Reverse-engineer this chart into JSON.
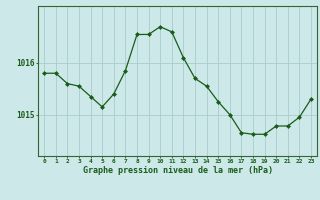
{
  "hours": [
    0,
    1,
    2,
    3,
    4,
    5,
    6,
    7,
    8,
    9,
    10,
    11,
    12,
    13,
    14,
    15,
    16,
    17,
    18,
    19,
    20,
    21,
    22,
    23
  ],
  "pressure": [
    1015.8,
    1015.8,
    1015.6,
    1015.55,
    1015.35,
    1015.15,
    1015.4,
    1015.85,
    1016.55,
    1016.55,
    1016.7,
    1016.6,
    1016.1,
    1015.7,
    1015.55,
    1015.25,
    1015.0,
    1014.65,
    1014.62,
    1014.62,
    1014.78,
    1014.78,
    1014.95,
    1015.3
  ],
  "line_color": "#1a5c1a",
  "marker_color": "#1a5c1a",
  "bg_color": "#cce8e8",
  "grid_color": "#aacccc",
  "xlabel": "Graphe pression niveau de la mer (hPa)",
  "xlabel_color": "#1a5c1a",
  "tick_color": "#1a5c1a",
  "spine_color": "#336633",
  "yticks": [
    1015,
    1016
  ],
  "ylim": [
    1014.2,
    1017.1
  ],
  "xlim": [
    -0.5,
    23.5
  ],
  "figsize": [
    3.2,
    2.0
  ],
  "dpi": 100
}
